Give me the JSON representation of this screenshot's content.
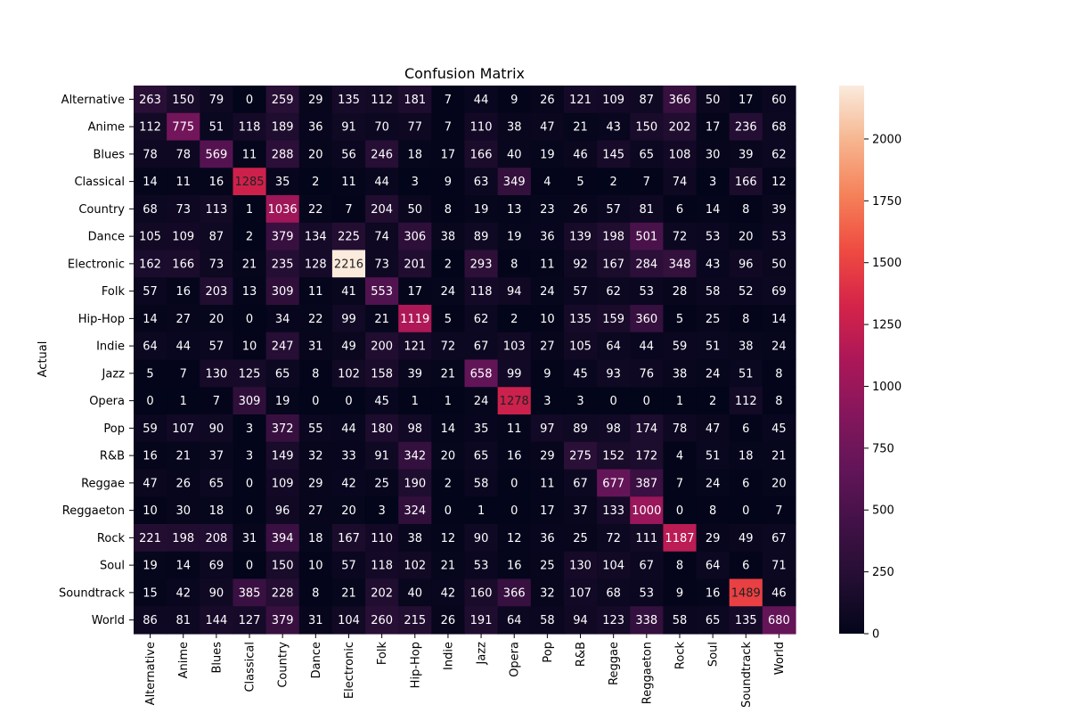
{
  "chart_data": {
    "type": "heatmap",
    "title": "Confusion Matrix",
    "ylabel": "Actual",
    "xlabel": "",
    "categories": [
      "Alternative",
      "Anime",
      "Blues",
      "Classical",
      "Country",
      "Dance",
      "Electronic",
      "Folk",
      "Hip-Hop",
      "Indie",
      "Jazz",
      "Opera",
      "Pop",
      "R&B",
      "Reggae",
      "Reggaeton",
      "Rock",
      "Soul",
      "Soundtrack",
      "World"
    ],
    "matrix": [
      [
        263,
        150,
        79,
        0,
        259,
        29,
        135,
        112,
        181,
        7,
        44,
        9,
        26,
        121,
        109,
        87,
        366,
        50,
        17,
        60
      ],
      [
        112,
        775,
        51,
        118,
        189,
        36,
        91,
        70,
        77,
        7,
        110,
        38,
        47,
        21,
        43,
        150,
        202,
        17,
        236,
        68
      ],
      [
        78,
        78,
        569,
        11,
        288,
        20,
        56,
        246,
        18,
        17,
        166,
        40,
        19,
        46,
        145,
        65,
        108,
        30,
        39,
        62
      ],
      [
        14,
        11,
        16,
        1285,
        35,
        2,
        11,
        44,
        3,
        9,
        63,
        349,
        4,
        5,
        2,
        7,
        74,
        3,
        166,
        12
      ],
      [
        68,
        73,
        113,
        1,
        1036,
        22,
        7,
        204,
        50,
        8,
        19,
        13,
        23,
        26,
        57,
        81,
        6,
        14,
        8,
        39
      ],
      [
        105,
        109,
        87,
        2,
        379,
        134,
        225,
        74,
        306,
        38,
        89,
        19,
        36,
        139,
        198,
        501,
        72,
        53,
        20,
        53
      ],
      [
        162,
        166,
        73,
        21,
        235,
        128,
        2216,
        73,
        201,
        2,
        293,
        8,
        11,
        92,
        167,
        284,
        348,
        43,
        96,
        50
      ],
      [
        57,
        16,
        203,
        13,
        309,
        11,
        41,
        553,
        17,
        24,
        118,
        94,
        24,
        57,
        62,
        53,
        28,
        58,
        52,
        69
      ],
      [
        14,
        27,
        20,
        0,
        34,
        22,
        99,
        21,
        1119,
        5,
        62,
        2,
        10,
        135,
        159,
        360,
        5,
        25,
        8,
        14
      ],
      [
        64,
        44,
        57,
        10,
        247,
        31,
        49,
        200,
        121,
        72,
        67,
        103,
        27,
        105,
        64,
        44,
        59,
        51,
        38,
        24
      ],
      [
        5,
        7,
        130,
        125,
        65,
        8,
        102,
        158,
        39,
        21,
        658,
        99,
        9,
        45,
        93,
        76,
        38,
        24,
        51,
        8
      ],
      [
        0,
        1,
        7,
        309,
        19,
        0,
        0,
        45,
        1,
        1,
        24,
        1278,
        3,
        3,
        0,
        0,
        1,
        2,
        112,
        8
      ],
      [
        59,
        107,
        90,
        3,
        372,
        55,
        44,
        180,
        98,
        14,
        35,
        11,
        97,
        89,
        98,
        174,
        78,
        47,
        6,
        45
      ],
      [
        16,
        21,
        37,
        3,
        149,
        32,
        33,
        91,
        342,
        20,
        65,
        16,
        29,
        275,
        152,
        172,
        4,
        51,
        18,
        21
      ],
      [
        47,
        26,
        65,
        0,
        109,
        29,
        42,
        25,
        190,
        2,
        58,
        0,
        11,
        67,
        677,
        387,
        7,
        24,
        6,
        20
      ],
      [
        10,
        30,
        18,
        0,
        96,
        27,
        20,
        3,
        324,
        0,
        1,
        0,
        17,
        37,
        133,
        1000,
        0,
        8,
        0,
        7
      ],
      [
        221,
        198,
        208,
        31,
        394,
        18,
        167,
        110,
        38,
        12,
        90,
        12,
        36,
        25,
        72,
        111,
        1187,
        29,
        49,
        67
      ],
      [
        19,
        14,
        69,
        0,
        150,
        10,
        57,
        118,
        102,
        21,
        53,
        16,
        25,
        130,
        104,
        67,
        8,
        64,
        6,
        71
      ],
      [
        15,
        42,
        90,
        385,
        228,
        8,
        21,
        202,
        40,
        42,
        160,
        366,
        32,
        107,
        68,
        53,
        9,
        16,
        1489,
        46
      ],
      [
        86,
        81,
        144,
        127,
        379,
        31,
        104,
        260,
        215,
        26,
        191,
        64,
        58,
        94,
        123,
        338,
        58,
        65,
        135,
        680
      ]
    ],
    "colorbar": {
      "range": [
        0,
        2216
      ],
      "ticks": [
        0,
        250,
        500,
        750,
        1000,
        1250,
        1500,
        1750,
        2000
      ],
      "colormap": "rocket"
    },
    "grid": false,
    "legend": "colorbar-right"
  }
}
